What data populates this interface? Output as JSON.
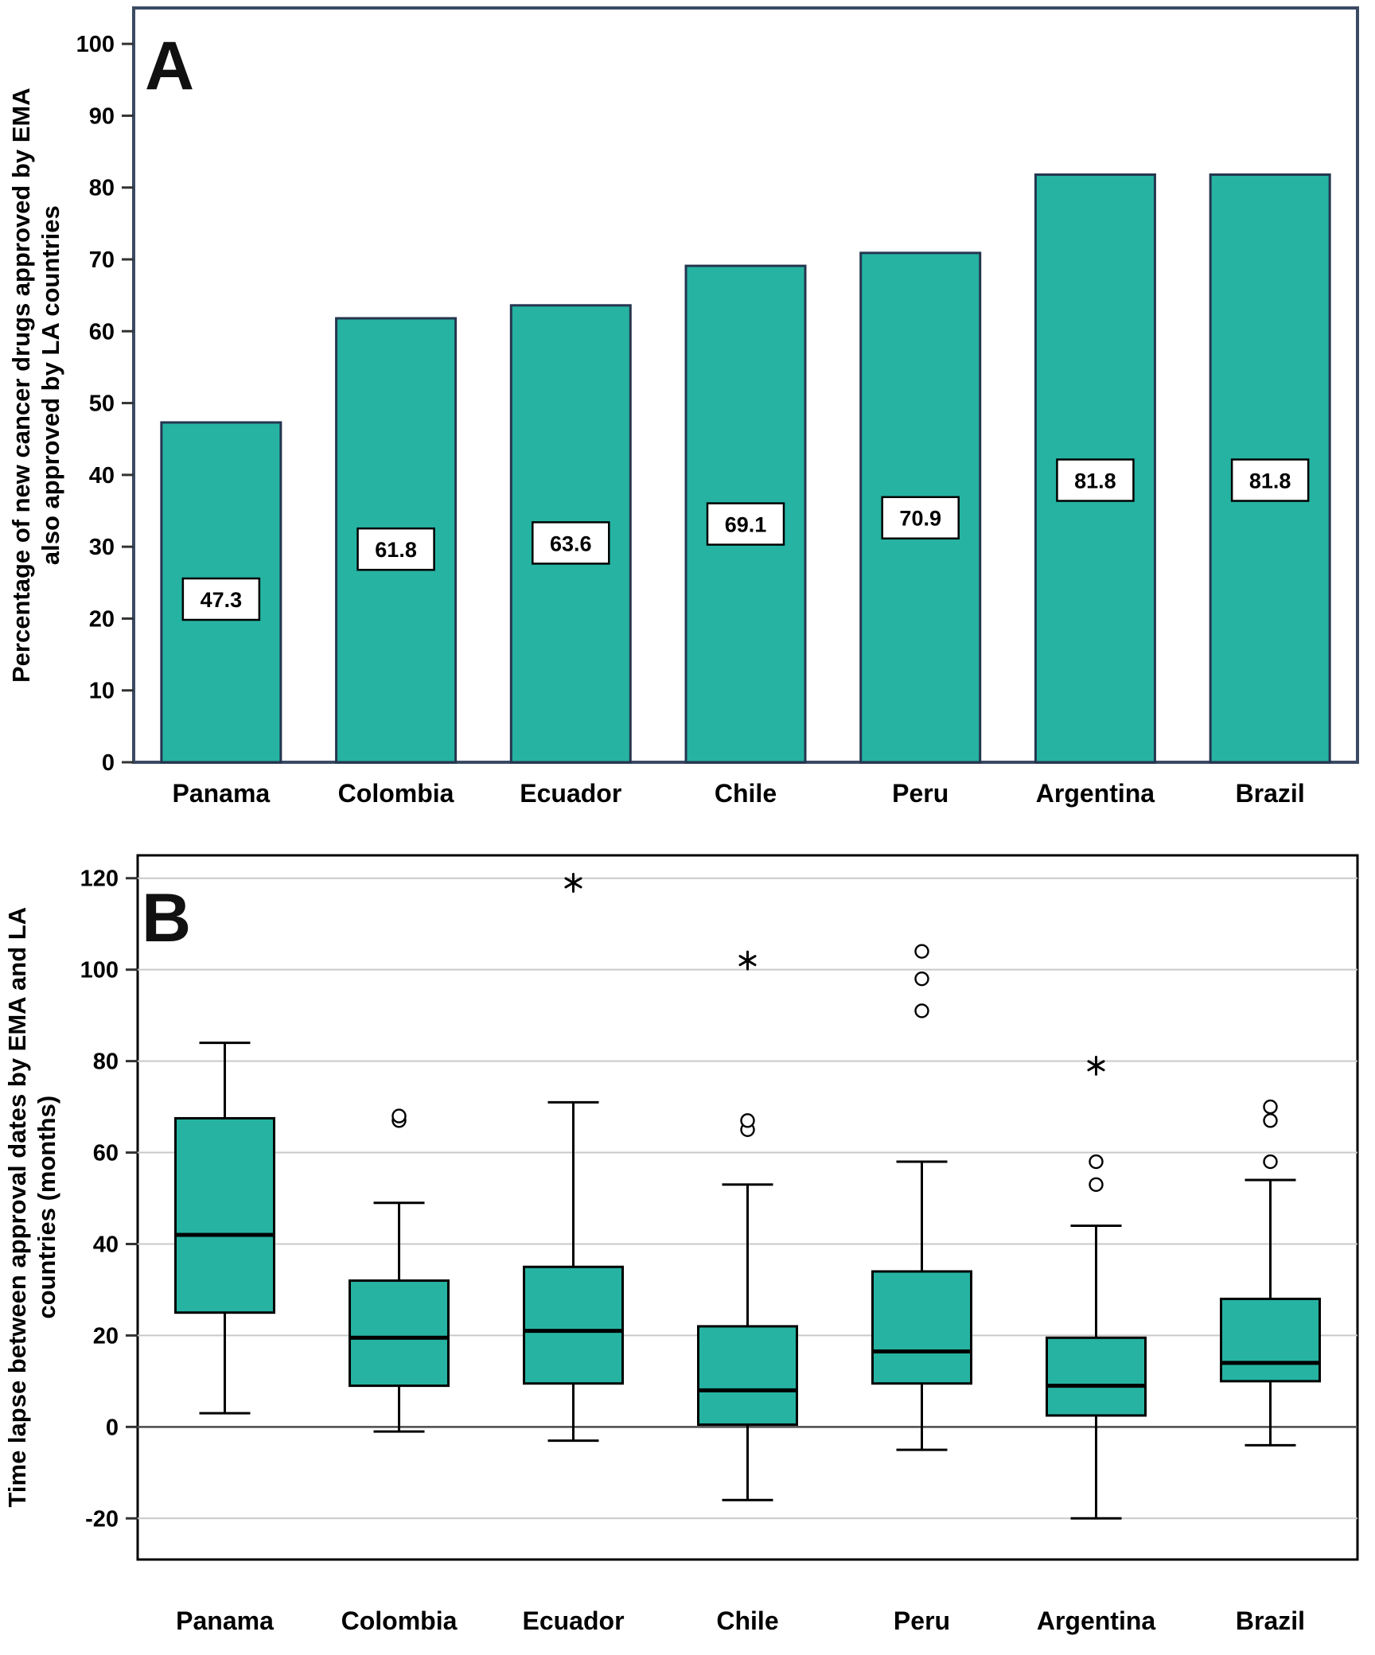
{
  "colors": {
    "teal": "#26b3a2",
    "bar_border": "#25364f",
    "frame_a": "#3b4a63",
    "frame_b": "#000000",
    "grid": "#c9c9c9",
    "zero_line": "#4a4a4a",
    "label_box_bg": "#ffffff",
    "label_box_border": "#000000"
  },
  "chart_data": [
    {
      "type": "bar",
      "panel_label": "A",
      "ylabel": "Percentage of new cancer drugs approved by EMA also approved by LA countries",
      "categories": [
        "Panama",
        "Colombia",
        "Ecuador",
        "Chile",
        "Peru",
        "Argentina",
        "Brazil"
      ],
      "values": [
        47.3,
        61.8,
        63.6,
        69.1,
        70.9,
        81.8,
        81.8
      ],
      "value_labels": [
        "47.3",
        "61.8",
        "63.6",
        "69.1",
        "70.9",
        "81.8",
        "81.8"
      ],
      "ylim": [
        0,
        105
      ],
      "yticks": [
        0,
        10,
        20,
        30,
        40,
        50,
        60,
        70,
        80,
        90,
        100
      ],
      "grid": false,
      "legend": "none"
    },
    {
      "type": "box",
      "panel_label": "B",
      "ylabel": "Time lapse between approval dates by EMA and LA countries (months)",
      "categories": [
        "Panama",
        "Colombia",
        "Ecuador",
        "Chile",
        "Peru",
        "Argentina",
        "Brazil"
      ],
      "ylim": [
        -29,
        125
      ],
      "yticks": [
        -20,
        0,
        20,
        40,
        60,
        80,
        100,
        120
      ],
      "grid": true,
      "legend": "none",
      "series": [
        {
          "name": "Panama",
          "whisker_low": 3,
          "q1": 25,
          "median": 42,
          "q3": 67.5,
          "whisker_high": 84,
          "outliers": [],
          "extremes": []
        },
        {
          "name": "Colombia",
          "whisker_low": -1,
          "q1": 9,
          "median": 19.5,
          "q3": 32,
          "whisker_high": 49,
          "outliers": [
            67,
            68
          ],
          "extremes": []
        },
        {
          "name": "Ecuador",
          "whisker_low": -3,
          "q1": 9.5,
          "median": 21,
          "q3": 35,
          "whisker_high": 71,
          "outliers": [],
          "extremes": [
            119
          ]
        },
        {
          "name": "Chile",
          "whisker_low": -16,
          "q1": 0.5,
          "median": 8,
          "q3": 22,
          "whisker_high": 53,
          "outliers": [
            65,
            67
          ],
          "extremes": [
            102
          ]
        },
        {
          "name": "Peru",
          "whisker_low": -5,
          "q1": 9.5,
          "median": 16.5,
          "q3": 34,
          "whisker_high": 58,
          "outliers": [
            91,
            98,
            104
          ],
          "extremes": []
        },
        {
          "name": "Argentina",
          "whisker_low": -20,
          "q1": 2.5,
          "median": 9,
          "q3": 19.5,
          "whisker_high": 44,
          "outliers": [
            53,
            58
          ],
          "extremes": [
            79
          ]
        },
        {
          "name": "Brazil",
          "whisker_low": -4,
          "q1": 10,
          "median": 14,
          "q3": 28,
          "whisker_high": 54,
          "outliers": [
            58,
            67,
            70
          ],
          "extremes": []
        }
      ]
    }
  ]
}
